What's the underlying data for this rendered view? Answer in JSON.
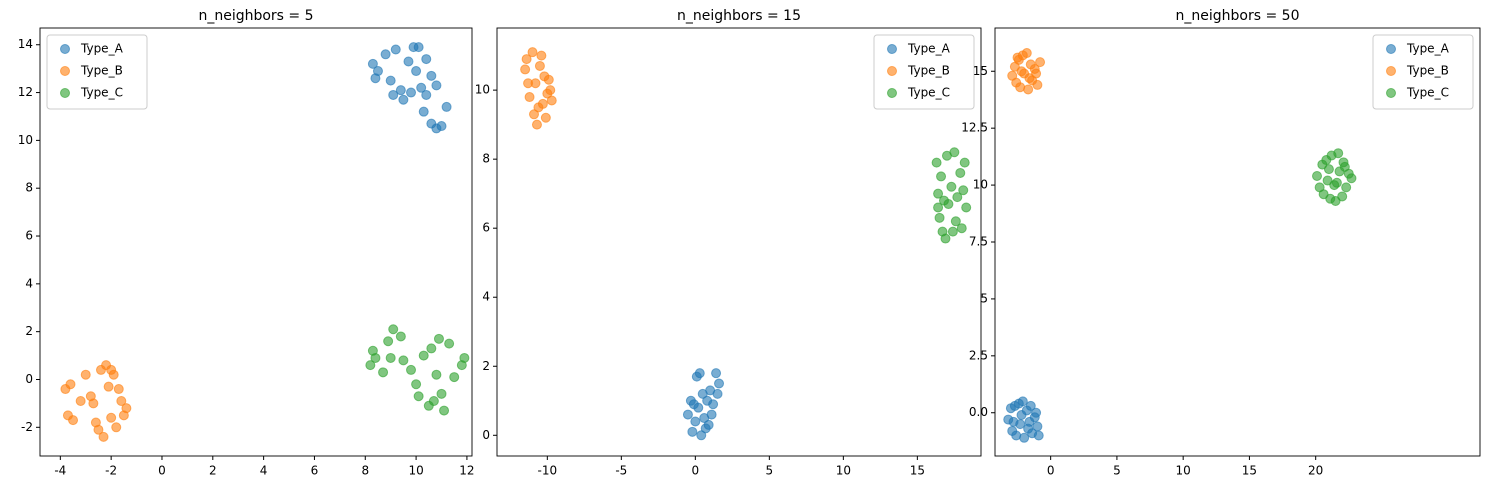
{
  "chart_data": [
    {
      "type": "scatter",
      "title": "n_neighbors = 5",
      "legend": "upper left",
      "xlim": [
        -4.8,
        12.2
      ],
      "ylim": [
        -3.2,
        14.7
      ],
      "xticks": [
        -4,
        -2,
        0,
        2,
        4,
        6,
        8,
        10,
        12
      ],
      "yticks": [
        -2,
        0,
        2,
        4,
        6,
        8,
        10,
        12,
        14
      ],
      "series": [
        {
          "name": "Type_A",
          "color": "#1f77b4",
          "x": [
            8.3,
            8.5,
            8.8,
            9.0,
            9.2,
            9.4,
            9.5,
            9.7,
            9.9,
            10.0,
            10.2,
            10.1,
            10.4,
            10.4,
            10.6,
            10.8,
            10.6,
            10.8,
            11.0,
            11.2,
            10.3,
            8.4,
            9.1,
            9.8
          ],
          "y": [
            13.2,
            12.9,
            13.6,
            12.5,
            13.8,
            12.1,
            11.7,
            13.3,
            13.9,
            12.9,
            12.2,
            13.9,
            11.9,
            13.4,
            12.7,
            12.3,
            10.7,
            10.5,
            10.6,
            11.4,
            11.2,
            12.6,
            11.9,
            12.0
          ]
        },
        {
          "name": "Type_B",
          "color": "#ff7f0e",
          "x": [
            -3.8,
            -3.6,
            -3.7,
            -3.5,
            -3.0,
            -2.8,
            -2.6,
            -2.5,
            -2.4,
            -2.2,
            -2.3,
            -2.1,
            -2.0,
            -1.9,
            -1.8,
            -1.7,
            -1.5,
            -1.4,
            -3.2,
            -2.7,
            -2.0,
            -1.6
          ],
          "y": [
            -0.4,
            -0.2,
            -1.5,
            -1.7,
            0.2,
            -0.7,
            -1.8,
            -2.1,
            0.4,
            0.6,
            -2.4,
            -0.3,
            -1.6,
            0.2,
            -2.0,
            -0.4,
            -1.5,
            -1.2,
            -0.9,
            -1.0,
            0.4,
            -0.9
          ]
        },
        {
          "name": "Type_C",
          "color": "#2ca02c",
          "x": [
            8.2,
            8.3,
            8.4,
            8.7,
            8.9,
            9.0,
            9.1,
            9.4,
            9.5,
            9.8,
            10.0,
            10.1,
            10.3,
            10.5,
            10.6,
            10.8,
            10.9,
            11.0,
            11.1,
            11.3,
            11.5,
            11.8,
            11.9,
            10.7
          ],
          "y": [
            0.6,
            1.2,
            0.9,
            0.3,
            1.6,
            0.9,
            2.1,
            1.8,
            0.8,
            0.4,
            -0.2,
            -0.7,
            1.0,
            -1.1,
            1.3,
            0.2,
            1.7,
            -0.6,
            -1.3,
            1.5,
            0.1,
            0.6,
            0.9,
            -0.9
          ]
        }
      ]
    },
    {
      "type": "scatter",
      "title": "n_neighbors = 15",
      "legend": "upper right",
      "xlim": [
        -13.4,
        19.3
      ],
      "ylim": [
        -0.6,
        11.8
      ],
      "xticks": [
        -10,
        -5,
        0,
        5,
        10,
        15
      ],
      "yticks": [
        0,
        2,
        4,
        6,
        8,
        10
      ],
      "series": [
        {
          "name": "Type_A",
          "color": "#1f77b4",
          "x": [
            -0.5,
            -0.3,
            -0.2,
            0.0,
            0.1,
            0.2,
            0.3,
            0.4,
            0.5,
            0.6,
            0.8,
            0.9,
            1.0,
            1.2,
            1.4,
            1.5,
            1.6,
            1.1,
            -0.1,
            0.7
          ],
          "y": [
            0.6,
            1.0,
            0.1,
            0.4,
            1.7,
            0.8,
            1.8,
            0.0,
            1.2,
            0.5,
            1.0,
            0.3,
            1.3,
            0.9,
            1.8,
            1.2,
            1.5,
            0.6,
            0.9,
            0.2
          ]
        },
        {
          "name": "Type_B",
          "color": "#ff7f0e",
          "x": [
            -11.5,
            -11.4,
            -11.2,
            -11.0,
            -10.8,
            -10.9,
            -10.7,
            -10.5,
            -10.3,
            -10.2,
            -10.0,
            -9.8,
            -9.7,
            -9.9,
            -11.3,
            -10.6,
            -10.4,
            -10.1
          ],
          "y": [
            10.6,
            10.9,
            9.8,
            11.1,
            10.2,
            9.3,
            9.0,
            10.7,
            9.6,
            10.4,
            9.9,
            10.0,
            9.7,
            10.3,
            10.2,
            9.5,
            11.0,
            9.2
          ]
        },
        {
          "name": "Type_C",
          "color": "#2ca02c",
          "x": [
            16.3,
            16.4,
            16.5,
            16.6,
            16.7,
            16.9,
            17.0,
            17.1,
            17.3,
            17.5,
            17.6,
            17.7,
            17.9,
            18.0,
            18.1,
            18.3,
            18.2,
            16.8,
            17.4,
            16.4
          ],
          "y": [
            7.9,
            7.0,
            6.3,
            7.5,
            5.9,
            5.7,
            8.1,
            6.7,
            7.2,
            8.2,
            6.2,
            6.9,
            7.6,
            6.0,
            7.1,
            6.6,
            7.9,
            6.8,
            5.9,
            6.6
          ]
        }
      ]
    },
    {
      "type": "scatter",
      "title": "n_neighbors = 50",
      "legend": "upper right",
      "xlim": [
        -4.2,
        32.4
      ],
      "ylim": [
        -1.9,
        16.9
      ],
      "xticks": [
        0,
        5,
        10,
        15,
        20
      ],
      "yticks": [
        {
          "value": 0,
          "label": "0.0"
        },
        2.5,
        5,
        7.5,
        10,
        12.5,
        15
      ],
      "series": [
        {
          "name": "Type_A",
          "color": "#1f77b4",
          "x": [
            -3.2,
            -3.0,
            -2.9,
            -2.7,
            -2.6,
            -2.4,
            -2.3,
            -2.1,
            -2.0,
            -1.8,
            -1.7,
            -1.5,
            -1.4,
            -1.2,
            -1.0,
            -0.9,
            -2.8,
            -2.2,
            -1.6,
            -1.1
          ],
          "y": [
            -0.3,
            0.2,
            -0.8,
            0.3,
            -1.0,
            0.4,
            -0.5,
            0.5,
            -1.1,
            0.1,
            -0.7,
            0.3,
            -0.9,
            -0.2,
            -0.6,
            -1.0,
            -0.4,
            -0.1,
            -0.4,
            0.0
          ]
        },
        {
          "name": "Type_B",
          "color": "#ff7f0e",
          "x": [
            -2.9,
            -2.7,
            -2.6,
            -2.4,
            -2.3,
            -2.1,
            -2.0,
            -1.8,
            -1.7,
            -1.5,
            -1.4,
            -1.2,
            -1.0,
            -0.8,
            -2.2,
            -1.6,
            -1.1,
            -2.5
          ],
          "y": [
            14.8,
            15.2,
            14.5,
            15.5,
            14.3,
            15.7,
            14.9,
            15.8,
            14.2,
            15.3,
            14.6,
            15.1,
            14.4,
            15.4,
            15.0,
            14.7,
            14.9,
            15.6
          ]
        },
        {
          "name": "Type_C",
          "color": "#2ca02c",
          "x": [
            20.1,
            20.3,
            20.5,
            20.6,
            20.8,
            20.9,
            21.1,
            21.2,
            21.4,
            21.5,
            21.7,
            21.8,
            22.0,
            22.1,
            22.3,
            22.5,
            22.7,
            21.0,
            21.6,
            22.2
          ],
          "y": [
            10.4,
            9.9,
            10.9,
            9.6,
            11.1,
            10.2,
            9.4,
            11.3,
            10.0,
            9.3,
            11.4,
            10.6,
            9.5,
            11.0,
            9.9,
            10.5,
            10.3,
            10.7,
            10.1,
            10.8
          ]
        }
      ]
    }
  ]
}
